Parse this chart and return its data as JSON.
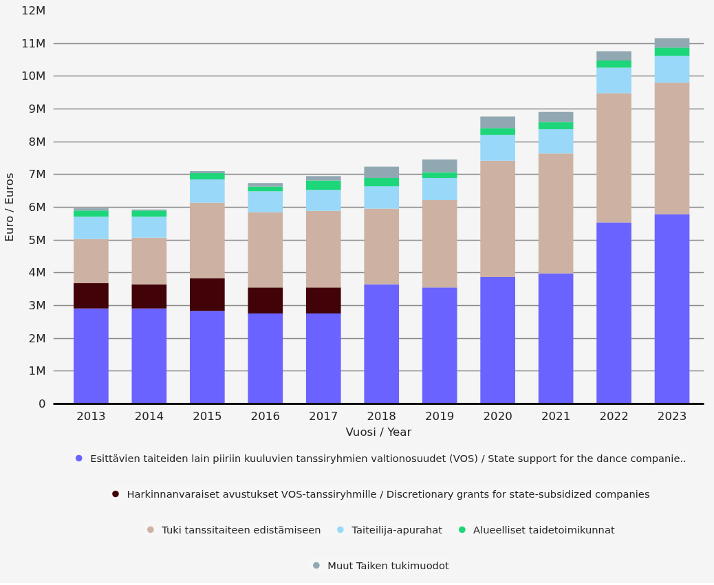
{
  "chart_data": {
    "type": "bar",
    "stacked": true,
    "xlabel": "Vuosi / Year",
    "ylabel": "Euro / Euros",
    "categories": [
      "2013",
      "2014",
      "2015",
      "2016",
      "2017",
      "2018",
      "2019",
      "2020",
      "2021",
      "2022",
      "2023"
    ],
    "series": [
      {
        "name": "Esittävien taiteiden lain piiriin kuuluvien tanssiryhmien valtionosuudet (VOS) / State support for the dance companie..",
        "color": "#6a63ff",
        "values": [
          2910000,
          2910000,
          2840000,
          2760000,
          2760000,
          3650000,
          3550000,
          3870000,
          3980000,
          5540000,
          5790000
        ]
      },
      {
        "name": "Harkinnanvaraiset avustukset VOS-tanssiryhmille / Discretionary grants for state-subsidized companies",
        "color": "#420308",
        "values": [
          770000,
          740000,
          990000,
          790000,
          790000,
          null,
          null,
          null,
          null,
          null,
          null
        ]
      },
      {
        "name": "Tuki tanssitaiteen edistämiseen",
        "color": "#cdb2a3",
        "values": [
          1350000,
          1420000,
          2310000,
          2300000,
          2340000,
          2310000,
          2670000,
          3550000,
          3660000,
          3940000,
          4010000
        ]
      },
      {
        "name": "Taiteilija-apurahat",
        "color": "#99d8f8",
        "values": [
          680000,
          640000,
          710000,
          640000,
          640000,
          680000,
          670000,
          790000,
          740000,
          780000,
          820000
        ]
      },
      {
        "name": "Alueelliset taidetoimikunnat",
        "color": "#1ed67a",
        "values": [
          190000,
          190000,
          190000,
          140000,
          290000,
          250000,
          180000,
          210000,
          220000,
          220000,
          250000
        ]
      },
      {
        "name": "Muut Taiken tukimuodot",
        "color": "#91a8b2",
        "values": [
          70000,
          30000,
          60000,
          110000,
          130000,
          350000,
          390000,
          350000,
          310000,
          280000,
          290000
        ]
      }
    ],
    "ylim": [
      0,
      12000000
    ],
    "yticks": [
      {
        "value": 0,
        "label": "0"
      },
      {
        "value": 1000000,
        "label": "1M"
      },
      {
        "value": 2000000,
        "label": "2M"
      },
      {
        "value": 3000000,
        "label": "3M"
      },
      {
        "value": 4000000,
        "label": "4M"
      },
      {
        "value": 5000000,
        "label": "5M"
      },
      {
        "value": 6000000,
        "label": "6M"
      },
      {
        "value": 7000000,
        "label": "7M"
      },
      {
        "value": 8000000,
        "label": "8M"
      },
      {
        "value": 9000000,
        "label": "9M"
      },
      {
        "value": 10000000,
        "label": "10M"
      },
      {
        "value": 11000000,
        "label": "11M"
      },
      {
        "value": 12000000,
        "label": "12M"
      }
    ],
    "grid": "y",
    "legend": "bottom"
  }
}
